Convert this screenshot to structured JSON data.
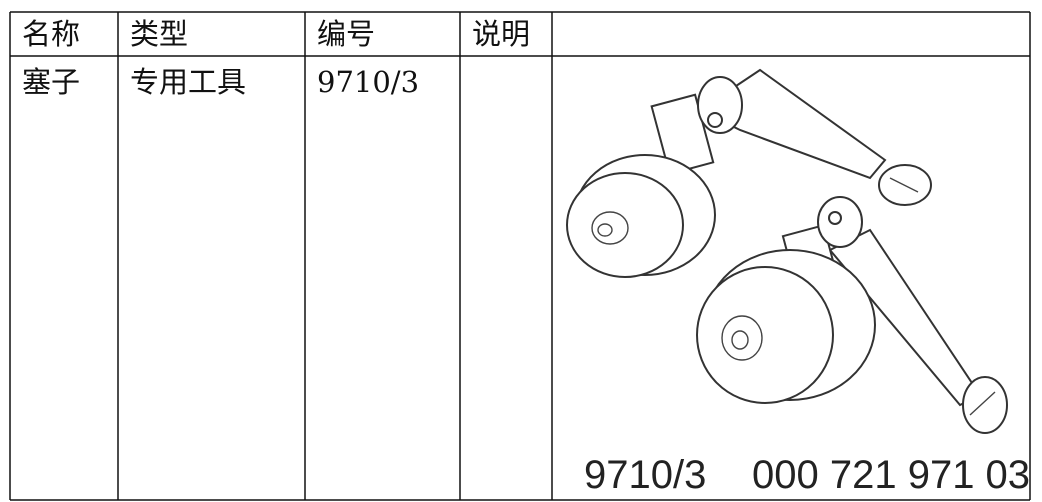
{
  "table": {
    "headers": [
      "名称",
      "类型",
      "编号",
      "说明"
    ],
    "rows": [
      {
        "name": "塞子",
        "type": "专用工具",
        "code": "9710/3"
      }
    ]
  },
  "image": {
    "caption": [
      "9710/3",
      "000 721 971 03"
    ]
  }
}
